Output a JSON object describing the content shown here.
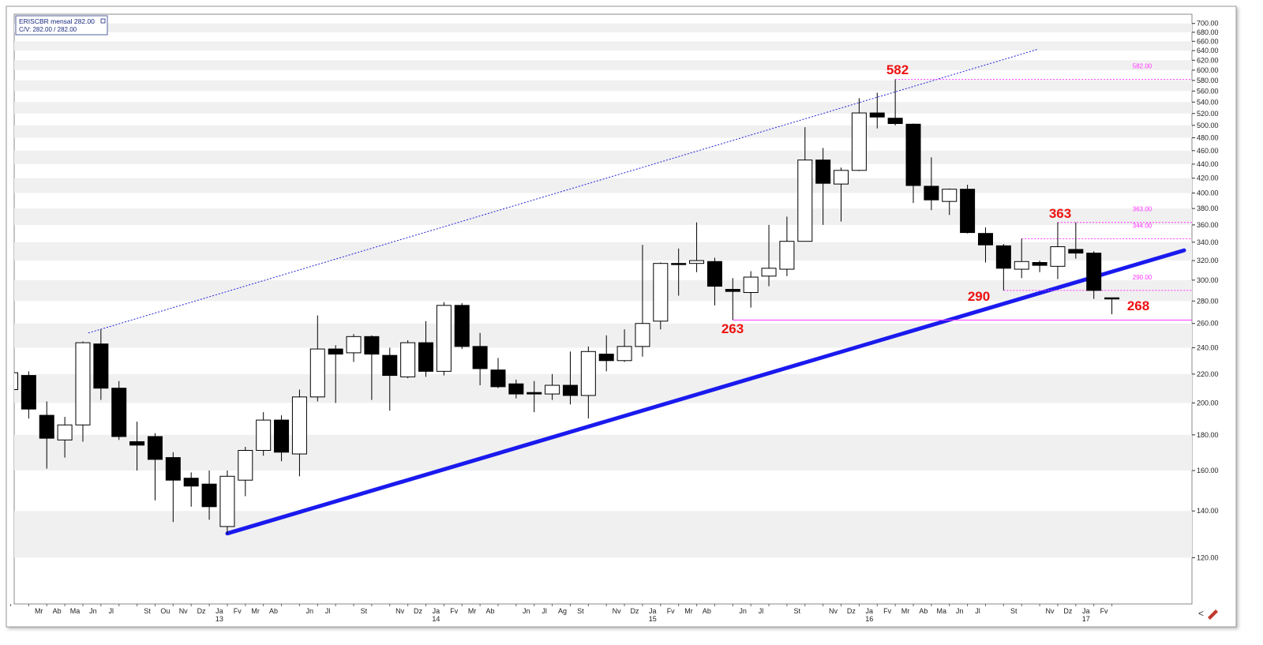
{
  "chart_data": {
    "type": "candlestick",
    "title": "ERISCBR mensal 282.00",
    "subtitle": "C/V: 282.00 / 282.00",
    "categories": [
      null,
      null,
      "Mr",
      "Ab",
      "Ma",
      "Jn",
      "Jl",
      null,
      "St",
      "Ou",
      "Nv",
      "Dz",
      "Ja",
      "Fv",
      "Mr",
      "Ab",
      null,
      "Jn",
      "Jl",
      null,
      "St",
      null,
      "Nv",
      "Dz",
      "Ja",
      "Fv",
      "Mr",
      "Ab",
      null,
      "Jn",
      "Jl",
      "Ag",
      "St",
      null,
      "Nv",
      "Dz",
      "Ja",
      "Fv",
      "Mr",
      "Ab",
      null,
      "Jn",
      "Jl",
      null,
      "St",
      null,
      "Nv",
      "Dz",
      "Ja",
      "Fv",
      "Mr",
      "Ab",
      "Ma",
      "Jn",
      "Jl",
      null,
      "St",
      null,
      "Nv",
      "Dz",
      "Ja",
      "Fv"
    ],
    "year_labels": [
      "13",
      "14",
      "15",
      "16",
      "17"
    ],
    "open": [
      209,
      219,
      192,
      177,
      186,
      243,
      210,
      176,
      179,
      167,
      156,
      153,
      133,
      155,
      171,
      189,
      169,
      204,
      239,
      236,
      249,
      234,
      218,
      244,
      222,
      276,
      241,
      223,
      213,
      207,
      206,
      212,
      205,
      235,
      230,
      241,
      262,
      317,
      317,
      319,
      291,
      288,
      304,
      311,
      341,
      446,
      412,
      431,
      521,
      512,
      502,
      409,
      389,
      405,
      350,
      336,
      311,
      318,
      314,
      332,
      328,
      283
    ],
    "high": [
      223,
      222,
      201,
      191,
      245,
      255,
      215,
      188,
      181,
      170,
      159,
      160,
      160,
      173,
      194,
      192,
      209,
      267,
      242,
      251,
      250,
      240,
      246,
      262,
      279,
      278,
      252,
      232,
      216,
      215,
      220,
      237,
      241,
      250,
      255,
      337,
      318,
      333,
      363,
      323,
      302,
      309,
      360,
      370,
      497,
      464,
      435,
      547,
      557,
      582,
      503,
      450,
      406,
      411,
      357,
      338,
      344,
      320,
      363,
      363,
      330,
      283
    ],
    "low": [
      206,
      190,
      161,
      167,
      176,
      202,
      177,
      160,
      145,
      135,
      142,
      136,
      130,
      147,
      168,
      165,
      157,
      201,
      200,
      229,
      202,
      195,
      217,
      218,
      219,
      239,
      212,
      210,
      203,
      194,
      202,
      199,
      190,
      222,
      229,
      233,
      255,
      285,
      308,
      276,
      263,
      274,
      294,
      304,
      341,
      360,
      364,
      430,
      495,
      500,
      387,
      378,
      372,
      350,
      318,
      290,
      302,
      308,
      301,
      322,
      282,
      268
    ],
    "close": [
      221,
      196,
      178,
      186,
      244,
      210,
      179,
      174,
      166,
      155,
      152,
      142,
      157,
      171,
      189,
      170,
      204,
      239,
      235,
      249,
      235,
      219,
      244,
      222,
      276,
      241,
      224,
      211,
      206,
      206,
      212,
      205,
      237,
      230,
      241,
      260,
      317,
      316,
      320,
      294,
      289,
      303,
      312,
      341,
      446,
      413,
      431,
      521,
      514,
      503,
      410,
      391,
      405,
      351,
      337,
      312,
      319,
      315,
      335,
      328,
      290,
      282
    ],
    "up_color": "#ffffff",
    "down_color": "#000000",
    "log_scale": true,
    "ylim": [
      103,
      718
    ],
    "yticks": [
      {
        "value": 120,
        "label": "120.00"
      },
      {
        "value": 140,
        "label": "140.00"
      },
      {
        "value": 160,
        "label": "160.00"
      },
      {
        "value": 180,
        "label": "180.00"
      },
      {
        "value": 200,
        "label": "200.00"
      },
      {
        "value": 220,
        "label": "220.00"
      },
      {
        "value": 240,
        "label": "240.00"
      },
      {
        "value": 260,
        "label": "260.00"
      },
      {
        "value": 280,
        "label": "280.00"
      },
      {
        "value": 300,
        "label": "300.00"
      },
      {
        "value": 320,
        "label": "320.00"
      },
      {
        "value": 340,
        "label": "340.00"
      },
      {
        "value": 360,
        "label": "360.00"
      },
      {
        "value": 380,
        "label": "380.00"
      },
      {
        "value": 400,
        "label": "400.00"
      },
      {
        "value": 420,
        "label": "420.00"
      },
      {
        "value": 440,
        "label": "440.00"
      },
      {
        "value": 460,
        "label": "460.00"
      },
      {
        "value": 480,
        "label": "480.00"
      },
      {
        "value": 500,
        "label": "500.00"
      },
      {
        "value": 520,
        "label": "520.00"
      },
      {
        "value": 540,
        "label": "540.00"
      },
      {
        "value": 560,
        "label": "560.00"
      },
      {
        "value": 580,
        "label": "580.00"
      },
      {
        "value": 600,
        "label": "600.00"
      },
      {
        "value": 620,
        "label": "620.00"
      },
      {
        "value": 640,
        "label": "640.00"
      },
      {
        "value": 660,
        "label": "660.00"
      },
      {
        "value": 680,
        "label": "680.00"
      },
      {
        "value": 700,
        "label": "700.00"
      }
    ],
    "annotations": [
      582,
      363,
      290,
      263,
      268
    ],
    "annotation_color": "#ee1111",
    "ref_lines": [
      {
        "value": 582,
        "label": "582.00"
      },
      {
        "value": 363,
        "label": "363.00"
      },
      {
        "value": 344,
        "label": "344.00"
      },
      {
        "value": 290,
        "label": "290.00"
      },
      {
        "value": 263
      }
    ],
    "ref_color": "#ff33ff",
    "trendlines": [
      {
        "values": [
          130,
          331
        ],
        "color": "#1a1aee",
        "style": "solid"
      },
      {
        "values": [
          252,
          643
        ],
        "color": "#2222dd",
        "style": "dotted"
      }
    ]
  }
}
